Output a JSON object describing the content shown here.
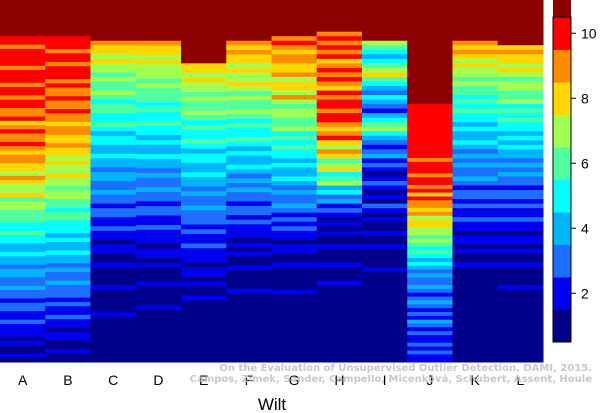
{
  "chart_data": {
    "type": "heatmap",
    "title": "",
    "xlabel": "Wilt",
    "ylabel": "",
    "categories": [
      "A",
      "B",
      "C",
      "D",
      "E",
      "F",
      "G",
      "H",
      "I",
      "J",
      "K",
      "L"
    ],
    "rows_per_column": 80,
    "zlim": [
      0.5,
      10.5
    ],
    "colorbar": {
      "ticks": [
        2,
        4,
        6,
        8,
        10
      ],
      "levels": [
        1,
        2,
        3,
        4,
        5,
        6,
        7,
        8,
        9,
        10
      ],
      "colors": [
        "#00008b",
        "#0000f0",
        "#1e6eff",
        "#00b4ff",
        "#00ffff",
        "#50ffa0",
        "#a0ff50",
        "#ffd700",
        "#ff8c00",
        "#ff0000",
        "#8b0000"
      ]
    },
    "background_level": 10.5,
    "top_band_ends": [
      8,
      8,
      9,
      9,
      14,
      9,
      8,
      7,
      9,
      23,
      9,
      10
    ],
    "columns": [
      {
        "name": "A",
        "values": [
          10,
          10,
          9,
          10,
          10,
          10,
          10,
          9,
          10,
          10,
          10,
          9,
          10,
          10,
          9,
          10,
          10,
          9,
          9,
          10,
          8,
          9,
          10,
          9,
          9,
          10,
          9,
          8,
          9,
          9,
          8,
          8,
          7,
          9,
          8,
          7,
          7,
          8,
          6,
          7,
          7,
          6,
          6,
          6,
          5,
          5,
          6,
          5,
          5,
          4,
          4,
          5,
          4,
          4,
          3,
          4,
          4,
          3,
          3,
          4,
          3,
          3,
          2,
          3,
          3,
          2,
          2,
          3,
          2,
          2,
          2,
          1,
          2,
          1,
          1,
          2,
          1
        ]
      },
      {
        "name": "B",
        "values": [
          10,
          10,
          10,
          9,
          10,
          10,
          9,
          10,
          10,
          10,
          9,
          10,
          9,
          9,
          10,
          9,
          9,
          10,
          9,
          9,
          8,
          9,
          9,
          8,
          8,
          9,
          8,
          8,
          7,
          8,
          7,
          7,
          8,
          7,
          7,
          6,
          7,
          7,
          6,
          6,
          5,
          6,
          6,
          5,
          5,
          5,
          4,
          5,
          4,
          4,
          5,
          4,
          4,
          3,
          4,
          3,
          3,
          4,
          3,
          3,
          3,
          2,
          3,
          2,
          2,
          3,
          2,
          2,
          1,
          2,
          2,
          1,
          1,
          2,
          1,
          1
        ]
      },
      {
        "name": "C",
        "values": [
          9,
          8,
          8,
          7,
          8,
          7,
          7,
          6,
          7,
          6,
          6,
          7,
          6,
          5,
          6,
          6,
          5,
          5,
          6,
          5,
          4,
          5,
          5,
          4,
          4,
          5,
          4,
          4,
          3,
          4,
          4,
          3,
          3,
          4,
          3,
          3,
          2,
          3,
          3,
          2,
          2,
          3,
          2,
          2,
          1,
          2,
          2,
          1,
          1,
          2,
          1,
          1,
          1,
          1,
          2,
          1,
          1,
          1,
          1,
          1,
          2,
          1,
          1,
          1,
          1,
          1,
          1,
          1,
          1,
          1,
          1
        ]
      },
      {
        "name": "D",
        "values": [
          9,
          8,
          8,
          7,
          8,
          7,
          7,
          7,
          6,
          7,
          6,
          6,
          6,
          5,
          6,
          5,
          5,
          6,
          5,
          5,
          4,
          5,
          4,
          4,
          5,
          4,
          4,
          3,
          4,
          3,
          3,
          4,
          3,
          3,
          2,
          3,
          3,
          2,
          2,
          3,
          2,
          2,
          2,
          1,
          2,
          2,
          1,
          2,
          1,
          1,
          1,
          2,
          1,
          1,
          1,
          1,
          2,
          1,
          1,
          1,
          1,
          1,
          1,
          1,
          1,
          1,
          1,
          1
        ]
      },
      {
        "name": "E",
        "values": [
          8,
          8,
          7,
          8,
          7,
          7,
          6,
          7,
          6,
          6,
          7,
          6,
          5,
          6,
          5,
          5,
          6,
          5,
          4,
          5,
          5,
          4,
          4,
          5,
          4,
          4,
          3,
          4,
          3,
          3,
          4,
          3,
          3,
          3,
          2,
          3,
          2,
          2,
          3,
          2,
          2,
          2,
          1,
          2,
          2,
          1,
          2,
          1,
          1,
          2,
          1,
          1,
          1,
          1,
          1,
          1,
          1,
          1,
          1,
          1,
          1,
          1,
          1
        ]
      },
      {
        "name": "F",
        "values": [
          9,
          8,
          9,
          8,
          8,
          7,
          8,
          7,
          7,
          8,
          7,
          6,
          7,
          6,
          6,
          7,
          6,
          5,
          6,
          5,
          5,
          6,
          5,
          4,
          5,
          4,
          4,
          5,
          4,
          3,
          4,
          3,
          4,
          3,
          3,
          2,
          3,
          3,
          2,
          3,
          2,
          2,
          2,
          1,
          2,
          1,
          2,
          1,
          1,
          2,
          1,
          1,
          1,
          1,
          2,
          1,
          1,
          1,
          1,
          1,
          1,
          1,
          1,
          1,
          1,
          1,
          1,
          1,
          1,
          1
        ]
      },
      {
        "name": "G",
        "values": [
          9,
          10,
          9,
          8,
          9,
          9,
          8,
          8,
          9,
          7,
          8,
          8,
          7,
          9,
          7,
          6,
          7,
          7,
          6,
          6,
          7,
          5,
          6,
          5,
          6,
          5,
          5,
          4,
          5,
          4,
          4,
          5,
          4,
          3,
          4,
          3,
          3,
          4,
          3,
          2,
          3,
          2,
          3,
          2,
          2,
          1,
          2,
          2,
          1,
          1,
          2,
          1,
          1,
          1,
          1,
          1,
          2,
          1,
          1,
          1,
          1,
          1,
          1,
          1,
          1,
          1,
          1,
          1,
          1,
          1,
          1,
          1
        ]
      },
      {
        "name": "H",
        "values": [
          9,
          10,
          9,
          10,
          9,
          10,
          8,
          9,
          10,
          9,
          10,
          9,
          8,
          10,
          9,
          10,
          10,
          9,
          10,
          10,
          9,
          8,
          9,
          10,
          8,
          7,
          9,
          8,
          6,
          7,
          8,
          5,
          6,
          7,
          4,
          5,
          3,
          4,
          2,
          3,
          2,
          1,
          2,
          1,
          2,
          1,
          1,
          2,
          1,
          1,
          1,
          2,
          1,
          1,
          1,
          2,
          1,
          1,
          1,
          1,
          1,
          1,
          1,
          1,
          1,
          1,
          1,
          1,
          1,
          1,
          1,
          1,
          1
        ]
      },
      {
        "name": "I",
        "values": [
          7,
          6,
          5,
          4,
          5,
          6,
          7,
          8,
          6,
          5,
          4,
          3,
          5,
          4,
          3,
          2,
          4,
          5,
          6,
          7,
          5,
          4,
          3,
          2,
          3,
          4,
          2,
          3,
          2,
          1,
          2,
          3,
          2,
          1,
          2,
          1,
          3,
          2,
          1,
          2,
          1,
          1,
          2,
          1,
          1,
          2,
          1,
          1,
          1,
          1,
          2,
          1,
          1,
          1,
          1,
          1,
          1,
          1,
          1,
          1,
          1,
          1,
          1,
          1,
          1,
          1,
          1,
          1,
          1,
          1,
          1
        ]
      },
      {
        "name": "J",
        "values": [
          10,
          10,
          10,
          10,
          10,
          10,
          10,
          10,
          10,
          10,
          10,
          10,
          10,
          10,
          9,
          10,
          10,
          10,
          9,
          10,
          10,
          9,
          10,
          8,
          10,
          9,
          9,
          8,
          9,
          7,
          8,
          8,
          7,
          7,
          6,
          7,
          6,
          5,
          6,
          5,
          4,
          5,
          4,
          3,
          4,
          3,
          3,
          4,
          3,
          2,
          3,
          4,
          3,
          2,
          3,
          2,
          4,
          3,
          2,
          3,
          2,
          2,
          3,
          2,
          3,
          2,
          2
        ]
      },
      {
        "name": "K",
        "values": [
          9,
          8,
          9,
          8,
          7,
          8,
          7,
          7,
          6,
          7,
          6,
          6,
          5,
          6,
          5,
          6,
          5,
          5,
          4,
          5,
          4,
          4,
          5,
          4,
          3,
          4,
          3,
          4,
          3,
          3,
          4,
          3,
          2,
          3,
          3,
          2,
          3,
          2,
          2,
          3,
          2,
          2,
          1,
          2,
          2,
          1,
          2,
          1,
          1,
          2,
          1,
          1,
          1,
          1,
          1,
          1,
          1,
          1,
          1,
          1,
          1,
          1,
          1,
          1,
          1,
          1,
          1,
          1,
          1,
          1,
          1
        ]
      },
      {
        "name": "L",
        "values": [
          8,
          9,
          8,
          8,
          7,
          8,
          7,
          6,
          7,
          7,
          6,
          6,
          7,
          5,
          6,
          5,
          6,
          5,
          5,
          4,
          5,
          4,
          5,
          4,
          4,
          3,
          4,
          3,
          4,
          3,
          3,
          2,
          3,
          3,
          2,
          3,
          2,
          2,
          3,
          2,
          2,
          1,
          2,
          2,
          1,
          2,
          1,
          1,
          2,
          1,
          1,
          1,
          1,
          2,
          1,
          1,
          1,
          1,
          1,
          1,
          1,
          1,
          1,
          1,
          1,
          1,
          1,
          1,
          1,
          1
        ]
      }
    ],
    "credit_line1": "On the Evaluation of Unsupervised Outlier Detection. DAMI, 2015.",
    "credit_line2": "Campos, Zimek, Sander, Campello, Micenková, Schubert, Assent, Houle"
  }
}
